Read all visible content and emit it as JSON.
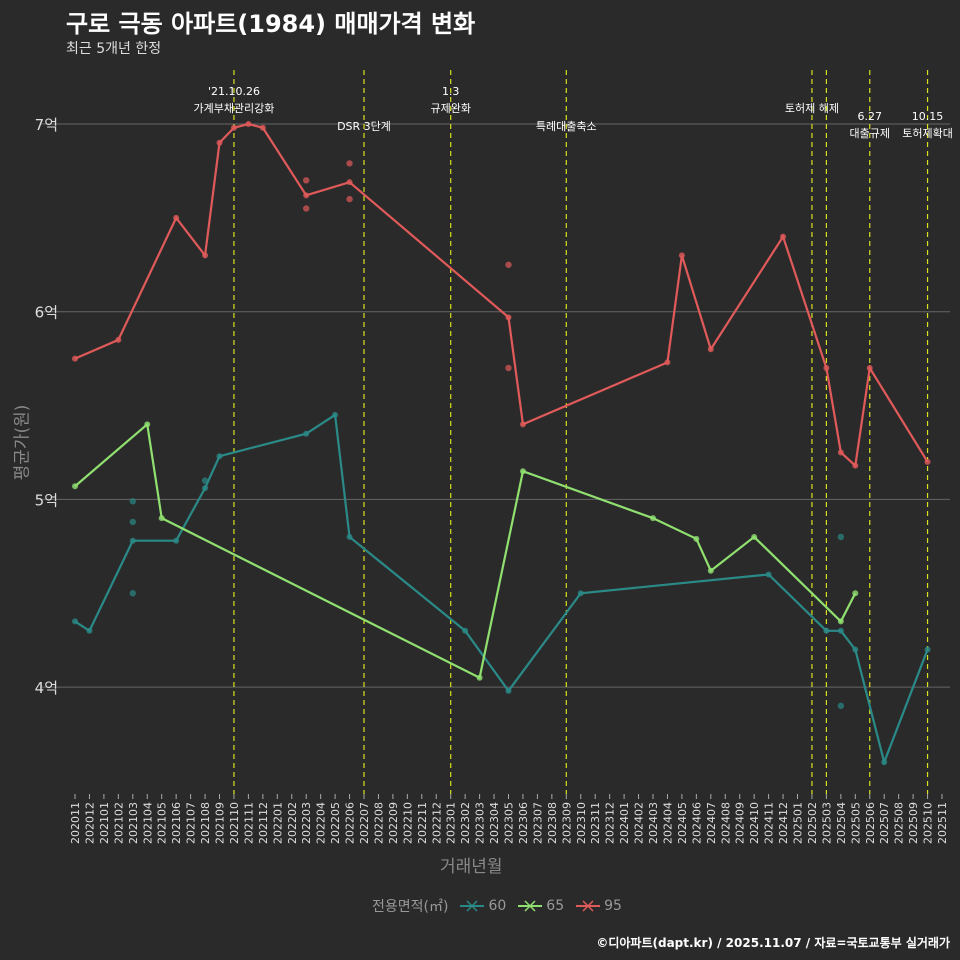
{
  "title": "구로 극동 아파트(1984) 매매가격 변화",
  "subtitle": "최근 5개년 한정",
  "footer": "©디아파트(dapt.kr) / 2025.11.07 / 자료=국토교통부 실거래가",
  "chart_data": {
    "type": "line",
    "xlabel": "거래년월",
    "ylabel": "평균가(원)",
    "ylim": [
      3.45,
      7.3
    ],
    "y_ticks": [
      {
        "v": 4,
        "label": "4억"
      },
      {
        "v": 5,
        "label": "5억"
      },
      {
        "v": 6,
        "label": "6억"
      },
      {
        "v": 7,
        "label": "7억"
      }
    ],
    "x_start": "2020-11",
    "x_months": 61,
    "x_ticks": [
      "202011",
      "202012",
      "202101",
      "202102",
      "202103",
      "202104",
      "202105",
      "202106",
      "202107",
      "202108",
      "202109",
      "202110",
      "202111",
      "202112",
      "202201",
      "202202",
      "202203",
      "202204",
      "202205",
      "202206",
      "202207",
      "202208",
      "202209",
      "202210",
      "202211",
      "202212",
      "202301",
      "202302",
      "202303",
      "202304",
      "202305",
      "202306",
      "202307",
      "202308",
      "202309",
      "202310",
      "202311",
      "202312",
      "202401",
      "202402",
      "202403",
      "202404",
      "202405",
      "202406",
      "202407",
      "202408",
      "202409",
      "202410",
      "202411",
      "202412",
      "202501",
      "202502",
      "202503",
      "202504",
      "202505",
      "202506",
      "202507",
      "202508",
      "202509",
      "202510",
      "202511"
    ],
    "legend_title": "전용면적(㎡)",
    "events": [
      {
        "m": 11,
        "lines": [
          "'21.10.26",
          "가계부채관리강화"
        ],
        "row": 0
      },
      {
        "m": 20,
        "lines": [
          "DSR 3단계"
        ],
        "row": 2
      },
      {
        "m": 26,
        "lines": [
          "1.3",
          "규제완화"
        ],
        "row": 0
      },
      {
        "m": 34,
        "lines": [
          "특례대출축소"
        ],
        "row": 2
      },
      {
        "m": 51,
        "lines": [
          "토허제 해제"
        ],
        "row": 1
      },
      {
        "m": 52,
        "lines": [],
        "row": 1
      },
      {
        "m": 55,
        "lines": [
          "6.27",
          "대출규제"
        ],
        "row": 3
      },
      {
        "m": 59,
        "lines": [
          "10.15",
          "토허제확대"
        ],
        "row": 3
      }
    ],
    "series": [
      {
        "name": "60",
        "color": "#2a8a88",
        "line": [
          [
            0,
            4.35
          ],
          [
            1,
            4.3
          ],
          [
            4,
            4.78
          ],
          [
            7,
            4.78
          ],
          [
            9,
            5.06
          ],
          [
            10,
            5.23
          ],
          [
            16,
            5.35
          ],
          [
            18,
            5.45
          ],
          [
            19,
            4.8
          ],
          [
            27,
            4.3
          ],
          [
            30,
            3.98
          ],
          [
            35,
            4.5
          ],
          [
            48,
            4.6
          ],
          [
            52,
            4.3
          ],
          [
            53,
            4.3
          ],
          [
            54,
            4.2
          ],
          [
            56,
            3.6
          ],
          [
            59,
            4.2
          ]
        ],
        "points": [
          [
            4,
            4.99
          ],
          [
            4,
            4.88
          ],
          [
            4,
            4.5
          ],
          [
            9,
            5.1
          ],
          [
            53,
            4.8
          ],
          [
            53,
            3.9
          ]
        ]
      },
      {
        "name": "65",
        "color": "#90e070",
        "line": [
          [
            0,
            5.07
          ],
          [
            5,
            5.4
          ],
          [
            6,
            4.9
          ],
          [
            28,
            4.05
          ],
          [
            31,
            5.15
          ],
          [
            40,
            4.9
          ],
          [
            43,
            4.79
          ],
          [
            44,
            4.62
          ],
          [
            47,
            4.8
          ],
          [
            53,
            4.35
          ],
          [
            54,
            4.5
          ]
        ],
        "points": []
      },
      {
        "name": "95",
        "color": "#e05a5a",
        "line": [
          [
            0,
            5.75
          ],
          [
            3,
            5.85
          ],
          [
            7,
            6.5
          ],
          [
            9,
            6.3
          ],
          [
            10,
            6.9
          ],
          [
            11,
            6.98
          ],
          [
            12,
            7.0
          ],
          [
            13,
            6.98
          ],
          [
            16,
            6.62
          ],
          [
            19,
            6.69
          ],
          [
            30,
            5.97
          ],
          [
            31,
            5.4
          ],
          [
            41,
            5.73
          ],
          [
            42,
            6.3
          ],
          [
            44,
            5.8
          ],
          [
            49,
            6.4
          ],
          [
            52,
            5.7
          ],
          [
            53,
            5.25
          ],
          [
            54,
            5.18
          ],
          [
            55,
            5.7
          ],
          [
            59,
            5.2
          ]
        ],
        "points": [
          [
            16,
            6.7
          ],
          [
            16,
            6.55
          ],
          [
            19,
            6.79
          ],
          [
            19,
            6.6
          ],
          [
            30,
            6.25
          ],
          [
            30,
            5.7
          ]
        ]
      }
    ]
  }
}
